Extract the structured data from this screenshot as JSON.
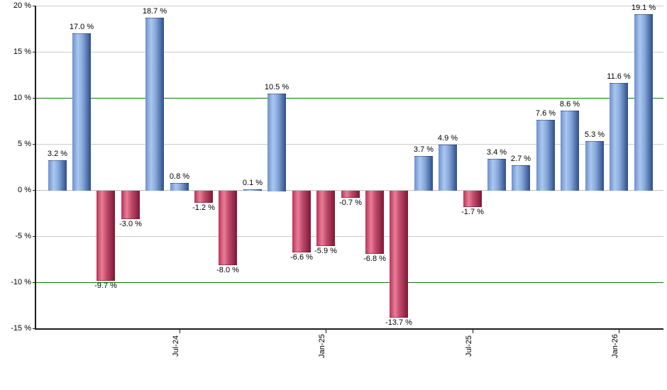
{
  "chart_data": {
    "type": "bar",
    "title": "",
    "xlabel": "",
    "ylabel": "",
    "unit": "%",
    "values": [
      3.2,
      17.0,
      -9.7,
      -3.0,
      18.7,
      0.8,
      -1.2,
      -8.0,
      0.1,
      10.5,
      -6.6,
      -5.9,
      -0.7,
      -6.8,
      -13.7,
      3.7,
      4.9,
      -1.7,
      3.4,
      2.7,
      7.6,
      8.6,
      5.3,
      11.6,
      19.1
    ],
    "bar_label_suffix": " %",
    "x_ticks": [
      {
        "label": "Jul-24",
        "index": 5
      },
      {
        "label": "Jan-25",
        "index": 11
      },
      {
        "label": "Jul-25",
        "index": 17
      },
      {
        "label": "Jan-26",
        "index": 23
      }
    ],
    "y_ticks": [
      20,
      15,
      10,
      5,
      0,
      -5,
      -10,
      -15
    ],
    "y_tick_suffix": " %",
    "ylim": [
      -15,
      20
    ],
    "grid": true,
    "legend_position": "none",
    "reference_lines": [
      {
        "value": 10,
        "color": "#047d04"
      },
      {
        "value": -10,
        "color": "#047d04"
      }
    ]
  },
  "colors": {
    "positive_gradient": [
      "#6e91cb",
      "#aac7f1",
      "#87a9da",
      "#2e4d8b"
    ],
    "negative_gradient": [
      "#bb3359",
      "#e87e97",
      "#c04a6a",
      "#7c1736"
    ],
    "gridline": "#cccccc",
    "zero_line": "#c2c2c2",
    "axis": "#1c1c1c",
    "label_text": "#000000"
  }
}
